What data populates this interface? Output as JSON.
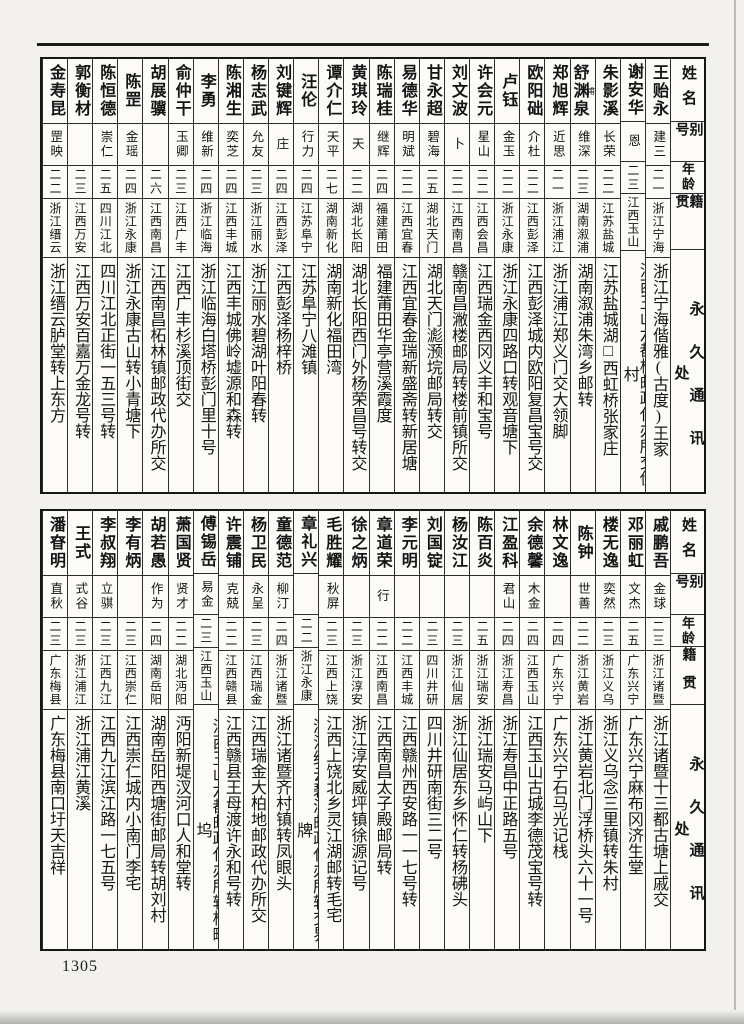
{
  "page": {
    "number": "1305"
  },
  "headers": {
    "name": "姓名",
    "alias": "别号",
    "age": "年龄",
    "native": "籍贯",
    "address": "永久通讯处"
  },
  "tables": [
    {
      "persons": [
        {
          "name": "王贻永",
          "alias": "建三",
          "age": "二一",
          "native": "浙江宁海",
          "address": "浙江宁海偕雅(古度)王家"
        },
        {
          "name": "谢安华",
          "alias": "恩",
          "age": "二三",
          "native": "江西玉山",
          "address": "江西玉山六都桥邮政代办所交伊村"
        },
        {
          "name": "朱影溪",
          "alias": "长荣",
          "age": "二二",
          "native": "江苏盐城",
          "address": "江苏盐城湖□西虹桥张家庄"
        },
        {
          "name": "舒渊泉",
          "note": "甫",
          "alias": "维深",
          "age": "二三",
          "native": "湖南溆浦",
          "address": "湖南溆浦朱湾乡邮转"
        },
        {
          "name": "郑旭辉",
          "alias": "近思",
          "age": "二一",
          "native": "浙江浦江",
          "address": "浙江浦江郑义门交大领脚"
        },
        {
          "name": "欧阳础",
          "alias": "介杜",
          "age": "二二",
          "native": "江西彭泽",
          "address": "江西彭泽城内欧阳复昌宝号交"
        },
        {
          "name": "卢钰",
          "alias": "金玉",
          "age": "二二",
          "native": "浙江永康",
          "address": "浙江永康四路口转观音塘下"
        },
        {
          "name": "许会元",
          "alias": "星山",
          "age": "二二",
          "native": "江西会昌",
          "address": "江西瑞金西冈义丰和宝号"
        },
        {
          "name": "刘文波",
          "alias": "卜",
          "age": "二二",
          "native": "江西南昌",
          "address": "赣南昌潎楼邮局转楼前镇所交"
        },
        {
          "name": "甘永超",
          "alias": "碧海",
          "age": "二五",
          "native": "湖北天门",
          "address": "湖北天门滮滪垸邮局转交"
        },
        {
          "name": "易德华",
          "alias": "明斌",
          "age": "二二",
          "native": "江西宜春",
          "address": "江西宜春金瑞新盛斋转新居塘"
        },
        {
          "name": "陈瑞桂",
          "alias": "继辉",
          "age": "二四",
          "native": "福建莆田",
          "address": "福建莆田华亭营溪霞度"
        },
        {
          "name": "黄琪玲",
          "alias": "天",
          "age": "二二",
          "native": "湖北长阳",
          "address": "湖北长阳西门外杨荣昌号转交"
        },
        {
          "name": "谭介仁",
          "alias": "天平",
          "age": "二七",
          "native": "湖南新化",
          "address": "湖南新化福田湾"
        },
        {
          "name": "汪伦",
          "alias": "行力",
          "age": "二四",
          "native": "江苏阜宁",
          "address": "江苏阜宁八滩镇"
        },
        {
          "name": "刘键辉",
          "alias": "庄",
          "age": "二四",
          "native": "江西彭泽",
          "address": "江西彭泽杨梓桥"
        },
        {
          "name": "杨志武",
          "alias": "允友",
          "age": "二三",
          "native": "浙江丽水",
          "address": "浙江丽水碧湖叶阳春转"
        },
        {
          "name": "陈湘生",
          "alias": "奕芝",
          "age": "二四",
          "native": "江西丰城",
          "address": "江西丰城佛岭墟源和森转"
        },
        {
          "name": "李勇",
          "alias": "维新",
          "age": "二四",
          "native": "浙江临海",
          "address": "浙江临海白塔桥彭门里十号"
        },
        {
          "name": "俞仲干",
          "alias": "玉卿",
          "age": "二三",
          "native": "江西广丰",
          "address": "江西广丰杉溪顶街交"
        },
        {
          "name": "胡展骥",
          "alias": "",
          "age": "二六",
          "native": "江西南昌",
          "address": "江西南昌柘林镇邮政代办所交"
        },
        {
          "name": "陈罡",
          "alias": "金瑶",
          "age": "二四",
          "native": "浙江永康",
          "address": "浙江永康古山转小青塘下"
        },
        {
          "name": "陈恒德",
          "alias": "崇仁",
          "age": "二五",
          "native": "四川江北",
          "address": "四川江北正街一五三号转"
        },
        {
          "name": "郭衡材",
          "alias": "",
          "age": "二三",
          "native": "江西万安",
          "address": "江西万安百嘉万金龙号转"
        },
        {
          "name": "金寿昆",
          "alias": "罡映",
          "age": "二二",
          "native": "浙江缙云",
          "address": "浙江缙云胪堂转上东方"
        }
      ]
    },
    {
      "persons": [
        {
          "name": "戚鹏吾",
          "alias": "金球",
          "age": "二三",
          "native": "浙江诸暨",
          "address": "浙江诸暨十三都古塘上戚交"
        },
        {
          "name": "邓丽虹",
          "alias": "文杰",
          "age": "二五",
          "native": "广东兴宁",
          "address": "广东兴宁麻布冈济生堂"
        },
        {
          "name": "楼无逸",
          "alias": "奕然",
          "age": "二三",
          "native": "浙江义乌",
          "address": "浙江义乌念三里镇转朱村"
        },
        {
          "name": "陈钟",
          "alias": "世善",
          "age": "二二",
          "native": "浙江黄岩",
          "address": "浙江黄岩北门浮桥头六十一号"
        },
        {
          "name": "林文逸",
          "alias": "",
          "age": "二四",
          "native": "广东兴宁",
          "address": "广东兴宁石马光记栈"
        },
        {
          "name": "余德馨",
          "alias": "木金",
          "age": "二四",
          "native": "江西玉山",
          "address": "江西玉山古城李德茂宝号转"
        },
        {
          "name": "江盈科",
          "alias": "君山",
          "age": "二四",
          "native": "浙江寿昌",
          "address": "浙江寿昌中正路五号"
        },
        {
          "name": "陈百炎",
          "alias": "",
          "age": "二五",
          "native": "浙江瑞安",
          "address": "浙江瑞安马屿山下"
        },
        {
          "name": "杨汝江",
          "alias": "",
          "age": "二三",
          "native": "浙江仙居",
          "address": "浙江仙居东乡怀仁转杨砩头"
        },
        {
          "name": "刘国锭",
          "alias": "",
          "age": "二三",
          "native": "四川井研",
          "address": "四川井研南街三二号"
        },
        {
          "name": "李元明",
          "alias": "",
          "age": "二二",
          "native": "江西丰城",
          "address": "江西赣州西安路一一七号转"
        },
        {
          "name": "章道荣",
          "alias": "行",
          "age": "二二",
          "native": "江西南昌",
          "address": "江西南昌太子殿邮局转"
        },
        {
          "name": "徐之炳",
          "alias": "",
          "age": "二三",
          "native": "浙江淳安",
          "address": "浙江淳安威坪镇徐源记号"
        },
        {
          "name": "毛胜耀",
          "alias": "秋屏",
          "age": "二三",
          "native": "江西上饶",
          "address": "江西上饶北乡灵江湖邮转毛宅"
        },
        {
          "name": "章礼兴",
          "alias": "",
          "age": "二二",
          "native": "浙江永康",
          "address": "浙江缙云碧溪邮政代办所转交界牌"
        },
        {
          "name": "童德范",
          "alias": "柳汀",
          "age": "二四",
          "native": "浙江诸暨",
          "address": "浙江诸暨齐村镇转凤眼头"
        },
        {
          "name": "杨卫民",
          "alias": "永呈",
          "age": "二三",
          "native": "江西瑞金",
          "address": "江西瑞金大柏地邮政代办所交"
        },
        {
          "name": "许震铺",
          "alias": "克兢",
          "age": "二二",
          "native": "江西赣县",
          "address": "江西赣县王母渡许永和号转"
        },
        {
          "name": "傅锡岳",
          "alias": "易金",
          "age": "二三",
          "native": "江西玉山",
          "address": "江西玉山六都邮政代办所转桥町坞"
        },
        {
          "name": "萧国贤",
          "alias": "贤才",
          "age": "二二",
          "native": "湖北沔阳",
          "address": "沔阳新堤汊河口人和堂转"
        },
        {
          "name": "胡若愚",
          "alias": "作为",
          "age": "二四",
          "native": "湖南岳阳",
          "address": "湖南岳阳西塘街邮局转胡刘村"
        },
        {
          "name": "李有炳",
          "alias": "",
          "age": "二三",
          "native": "江西崇仁",
          "address": "江西崇仁城内小南门李宅"
        },
        {
          "name": "李叔翔",
          "alias": "立骐",
          "age": "二三",
          "native": "江西九江",
          "address": "江西九江滨江路一七五号"
        },
        {
          "name": "王式",
          "alias": "式谷",
          "age": "二三",
          "native": "浙江浦江",
          "address": "浙江浦江黄溪"
        },
        {
          "name": "潘眘明",
          "alias": "直秋",
          "age": "二三",
          "native": "广东梅县",
          "address": "广东梅县南口圩天吉祥"
        }
      ]
    }
  ]
}
